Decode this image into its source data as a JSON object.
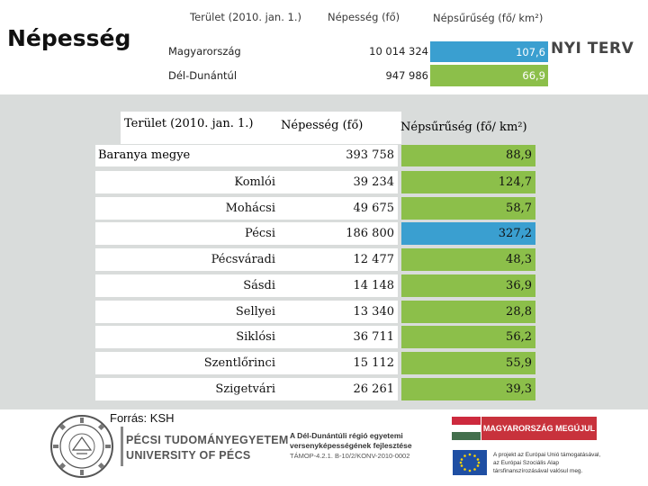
{
  "title": "Népesség",
  "top_table": {
    "headers": [
      "Terület (2010. jan. 1.)",
      "Népesség (fő)",
      "Népsűrűség (fő/ km²)"
    ],
    "rows": [
      {
        "region": "Magyarország",
        "population": "10 014 324",
        "density": "107,6"
      },
      {
        "region": "Dél-Dunántúl",
        "population": "947 986",
        "density": "66,9"
      }
    ]
  },
  "background_logo_text": "NYI TERV",
  "main_table": {
    "headers": [
      "Terület (2010. jan. 1.)",
      "Népesség (fő)",
      "Népsűrűség (fő/ km²)"
    ],
    "county": {
      "name": "Baranya megye",
      "population": "393 758",
      "density": "88,9"
    },
    "rows": [
      {
        "name": "Komlói",
        "population": "39 234",
        "density": "124,7"
      },
      {
        "name": "Mohácsi",
        "population": "49 675",
        "density": "58,7"
      },
      {
        "name": "Pécsi",
        "population": "186 800",
        "density": "327,2"
      },
      {
        "name": "Pécsváradi",
        "population": "12 477",
        "density": "48,3"
      },
      {
        "name": "Sásdi",
        "population": "14 148",
        "density": "36,9"
      },
      {
        "name": "Sellyei",
        "population": "13 340",
        "density": "28,8"
      },
      {
        "name": "Siklósi",
        "population": "36 711",
        "density": "56,2"
      },
      {
        "name": "Szentlőrinci",
        "population": "15 112",
        "density": "55,9"
      },
      {
        "name": "Szigetvári",
        "population": "26 261",
        "density": "39,3"
      }
    ]
  },
  "colors": {
    "green": "#8cbf4a",
    "blue": "#3a9fd0",
    "band": "#d9dcdb"
  },
  "source": "Forrás: KSH",
  "footer": {
    "university_hu": "PÉCSI TUDOMÁNYEGYETEM",
    "university_en": "UNIVERSITY OF PÉCS",
    "seal_text": "UNIVERSITAS QUINQUEECCLESIENSIS",
    "project_line1": "A Dél-Dunántúli régió egyetemi",
    "project_line2": "versenyképességének fejlesztése",
    "project_code": "TÁMOP-4.2.1. B-10/2/KONV-2010-0002",
    "banner": "MAGYARORSZÁG MEGÚJUL",
    "eu_line1": "A projekt az Európai Unió támogatásával,",
    "eu_line2": "az Európai Szociális Alap",
    "eu_line3": "társfinanszírozásával valósul meg."
  }
}
